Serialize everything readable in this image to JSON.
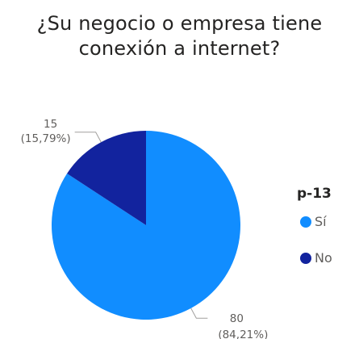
{
  "chart_data": {
    "type": "pie",
    "title_lines": [
      "¿Su negocio o empresa tiene",
      "conexión a internet?"
    ],
    "slices": [
      {
        "name": "Sí",
        "value": 80,
        "percent_label": "(84,21%)",
        "color": "#118DFF"
      },
      {
        "name": "No",
        "value": 15,
        "percent_label": "(15,79%)",
        "color": "#12239E"
      }
    ],
    "legend": {
      "title": "p-13",
      "position": "right"
    }
  }
}
